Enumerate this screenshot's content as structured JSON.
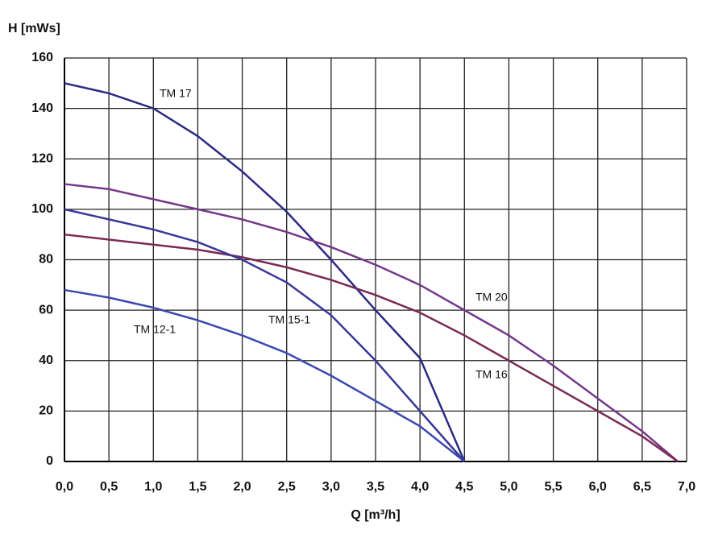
{
  "chart_data": {
    "type": "line",
    "x_label": "Q [m³/h]",
    "y_label": "H [mWs]",
    "xlim": [
      0,
      7
    ],
    "ylim": [
      0,
      160
    ],
    "xticks": [
      {
        "value": 0,
        "label": "0,0"
      },
      {
        "value": 0.5,
        "label": "0,5"
      },
      {
        "value": 1,
        "label": "1,0"
      },
      {
        "value": 1.5,
        "label": "1,5"
      },
      {
        "value": 2,
        "label": "2,0"
      },
      {
        "value": 2.5,
        "label": "2,5"
      },
      {
        "value": 3,
        "label": "3,0"
      },
      {
        "value": 3.5,
        "label": "3,5"
      },
      {
        "value": 4,
        "label": "4,0"
      },
      {
        "value": 4.5,
        "label": "4,5"
      },
      {
        "value": 5,
        "label": "5,0"
      },
      {
        "value": 5.5,
        "label": "5,5"
      },
      {
        "value": 6,
        "label": "6,0"
      },
      {
        "value": 6.5,
        "label": "6,5"
      },
      {
        "value": 7,
        "label": "7,0"
      }
    ],
    "yticks": [
      0,
      20,
      40,
      60,
      80,
      100,
      120,
      140,
      160
    ],
    "grid": true,
    "series": [
      {
        "name": "TM 17",
        "color": "#2b2b85",
        "x": [
          0,
          0.5,
          1,
          1.5,
          2,
          2.5,
          3,
          3.5,
          4,
          4.5
        ],
        "values": [
          150,
          146,
          140,
          129,
          115,
          99,
          80,
          60,
          41,
          0
        ]
      },
      {
        "name": "TM 20",
        "color": "#74378a",
        "x": [
          0,
          0.5,
          1,
          1.5,
          2,
          2.5,
          3,
          3.5,
          4,
          4.5,
          5,
          5.5,
          6,
          6.5,
          6.9
        ],
        "values": [
          110,
          108,
          104,
          100,
          96,
          91,
          85,
          78,
          70,
          60,
          50,
          38,
          25,
          12,
          0
        ]
      },
      {
        "name": "TM 16",
        "color": "#7a2a55",
        "x": [
          0,
          0.5,
          1,
          1.5,
          2,
          2.5,
          3,
          3.5,
          4,
          4.5,
          5,
          5.5,
          6,
          6.5,
          6.9
        ],
        "values": [
          90,
          88,
          86,
          84,
          81,
          77,
          72,
          66,
          59,
          50,
          40,
          30,
          20,
          10,
          0
        ]
      },
      {
        "name": "TM 15-1",
        "color": "#383898",
        "x": [
          0,
          0.5,
          1,
          1.5,
          2,
          2.5,
          3,
          3.5,
          4,
          4.5
        ],
        "values": [
          100,
          96,
          92,
          87,
          80,
          71,
          58,
          40,
          20,
          0
        ]
      },
      {
        "name": "TM 12-1",
        "color": "#3a48b0",
        "x": [
          0,
          0.5,
          1,
          1.5,
          2,
          2.5,
          3,
          3.5,
          4,
          4.5
        ],
        "values": [
          68,
          65,
          61,
          56,
          50,
          43,
          34,
          24,
          14,
          0
        ]
      }
    ]
  }
}
